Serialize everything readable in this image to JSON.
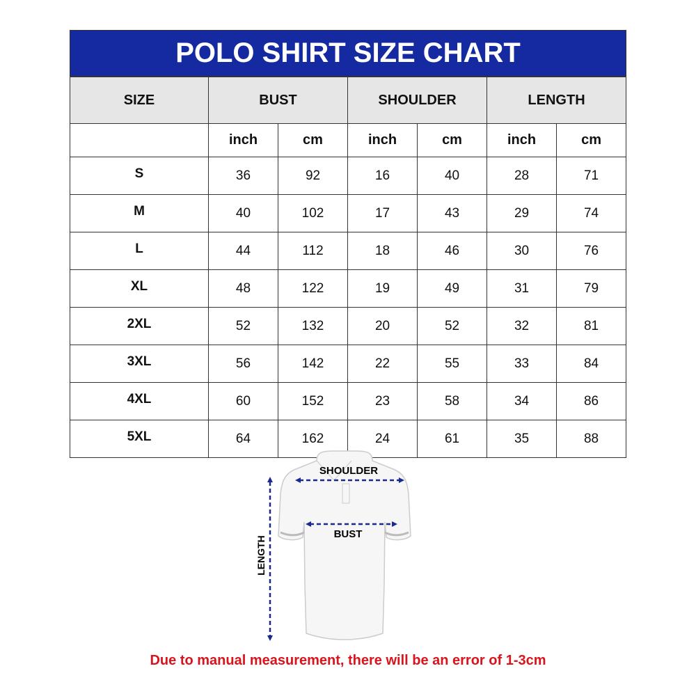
{
  "title": "POLO SHIRT SIZE CHART",
  "headers": {
    "size": "SIZE",
    "bust": "BUST",
    "shoulder": "SHOULDER",
    "length": "LENGTH"
  },
  "units": [
    "inch",
    "cm",
    "inch",
    "cm",
    "inch",
    "cm"
  ],
  "rows": [
    {
      "size": "S",
      "values": [
        "36",
        "92",
        "16",
        "40",
        "28",
        "71"
      ]
    },
    {
      "size": "M",
      "values": [
        "40",
        "102",
        "17",
        "43",
        "29",
        "74"
      ]
    },
    {
      "size": "L",
      "values": [
        "44",
        "112",
        "18",
        "46",
        "30",
        "76"
      ]
    },
    {
      "size": "XL",
      "values": [
        "48",
        "122",
        "19",
        "49",
        "31",
        "79"
      ]
    },
    {
      "size": "2XL",
      "values": [
        "52",
        "132",
        "20",
        "52",
        "32",
        "81"
      ]
    },
    {
      "size": "3XL",
      "values": [
        "56",
        "142",
        "22",
        "55",
        "33",
        "84"
      ]
    },
    {
      "size": "4XL",
      "values": [
        "60",
        "152",
        "23",
        "58",
        "34",
        "86"
      ]
    },
    {
      "size": "5XL",
      "values": [
        "64",
        "162",
        "24",
        "61",
        "35",
        "88"
      ]
    }
  ],
  "diagram": {
    "shoulder": "SHOULDER",
    "bust": "BUST",
    "length": "LENGTH"
  },
  "note": "Due to manual measurement, there will be an error of 1-3cm",
  "colors": {
    "header": "#1529a0",
    "note": "#d8141c",
    "arrows": "#1a2a8c"
  }
}
